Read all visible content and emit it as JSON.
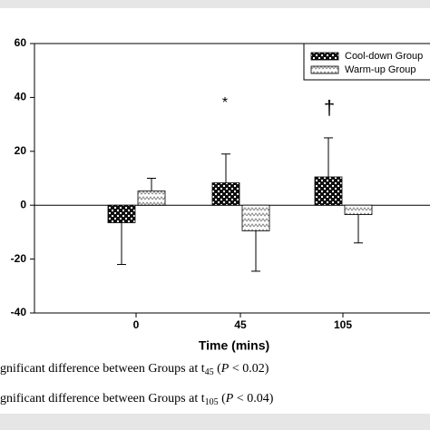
{
  "chart_data": {
    "type": "bar",
    "categories": [
      "0",
      "45",
      "105"
    ],
    "series": [
      {
        "name": "Cool-down Group",
        "values": [
          -6.5,
          8.3,
          10.5
        ],
        "errors": [
          15.5,
          10.7,
          14.5
        ]
      },
      {
        "name": "Warm-up Group",
        "values": [
          5.3,
          -9.5,
          -3.5
        ],
        "errors": [
          4.7,
          15,
          10.5
        ]
      }
    ],
    "ylim": [
      -40,
      60
    ],
    "yticks": [
      -40,
      -20,
      0,
      20,
      40,
      60
    ],
    "xlabel": "Time (mins)",
    "annotations": [
      "*",
      "†"
    ],
    "notes": [
      [
        "gnificant difference between Groups at t",
        "45",
        " (",
        "P",
        " < 0.02)"
      ],
      [
        "gnificant difference between Groups at t",
        "105",
        " (",
        "P",
        " < 0.04)"
      ]
    ]
  }
}
